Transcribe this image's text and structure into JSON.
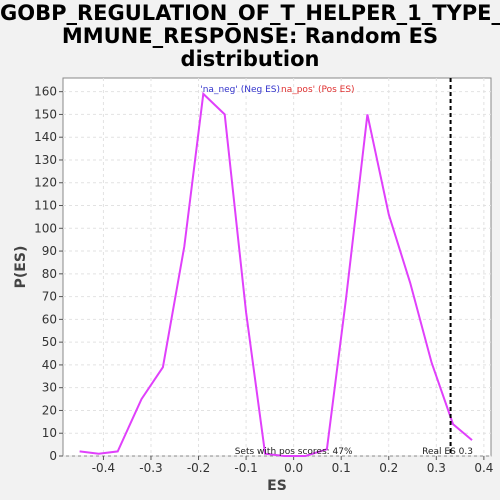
{
  "chart_data": {
    "type": "line",
    "title_lines": [
      "GOBP_REGULATION_OF_T_HELPER_1_TYPE_I",
      "MMUNE_RESPONSE: Random ES",
      "distribution"
    ],
    "xlabel": "ES",
    "ylabel": "P(ES)",
    "xlim": [
      -0.485,
      0.415
    ],
    "ylim": [
      0,
      166
    ],
    "xticks": [
      -0.4,
      -0.3,
      -0.2,
      -0.1,
      0.0,
      0.1,
      0.2,
      0.3,
      0.4
    ],
    "xtick_labels": [
      "-0.4",
      "-0.3",
      "-0.2",
      "-0.1",
      "0.0",
      "0.1",
      "0.2",
      "0.3",
      "0.4"
    ],
    "yticks": [
      0,
      10,
      20,
      30,
      40,
      50,
      60,
      70,
      80,
      90,
      100,
      110,
      120,
      130,
      140,
      150,
      160
    ],
    "grid": true,
    "series": [
      {
        "color": "#e040fb",
        "x": [
          -0.45,
          -0.41,
          -0.37,
          -0.32,
          -0.275,
          -0.23,
          -0.19,
          -0.145,
          -0.1,
          -0.06,
          -0.02,
          0.025,
          0.07,
          0.11,
          0.155,
          0.2,
          0.245,
          0.29,
          0.335,
          0.375
        ],
        "y": [
          2,
          1,
          2,
          25,
          39,
          92,
          159,
          150,
          63,
          1,
          0,
          0,
          3,
          69,
          150,
          106,
          76,
          41,
          14,
          7
        ]
      }
    ],
    "legend": {
      "placement": "top-center",
      "neg_label": "'na_neg' (Neg ES)",
      "pos_label": "na_pos' (Pos ES)",
      "neg_color": "#3333cc",
      "pos_color": "#e03030"
    },
    "real_es": {
      "value": 0.33,
      "label": "Real ES 0.3"
    },
    "annotation": "Sets with pos scores: 47%"
  }
}
